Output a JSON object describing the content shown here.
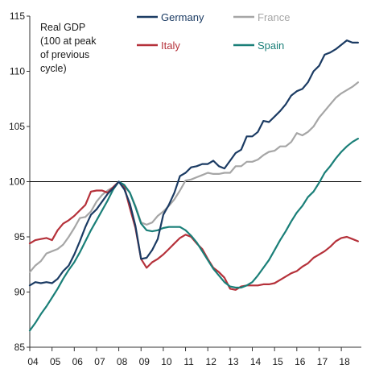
{
  "chart_data": {
    "type": "line",
    "title": "",
    "annotation": [
      "Real GDP",
      "(100 at peak",
      "of previous",
      "cycle)"
    ],
    "xlabel": "",
    "ylabel": "",
    "xlim": [
      2004.0,
      2018.9
    ],
    "ylim": [
      85,
      115
    ],
    "yticks": [
      85,
      90,
      95,
      100,
      105,
      110,
      115
    ],
    "xtick_labels": [
      "04",
      "05",
      "06",
      "07",
      "08",
      "09",
      "10",
      "11",
      "12",
      "13",
      "14",
      "15",
      "16",
      "17",
      "18"
    ],
    "reference_line": 100,
    "grid": false,
    "legend_position": "top",
    "series": [
      {
        "name": "Germany",
        "color": "#1b3b63",
        "x": [
          2004.0,
          2004.25,
          2004.5,
          2004.75,
          2005.0,
          2005.25,
          2005.5,
          2005.75,
          2006.0,
          2006.25,
          2006.5,
          2006.75,
          2007.0,
          2007.25,
          2007.5,
          2007.75,
          2008.0,
          2008.25,
          2008.5,
          2008.75,
          2009.0,
          2009.25,
          2009.5,
          2009.75,
          2010.0,
          2010.25,
          2010.5,
          2010.75,
          2011.0,
          2011.25,
          2011.5,
          2011.75,
          2012.0,
          2012.25,
          2012.5,
          2012.75,
          2013.0,
          2013.25,
          2013.5,
          2013.75,
          2014.0,
          2014.25,
          2014.5,
          2014.75,
          2015.0,
          2015.25,
          2015.5,
          2015.75,
          2016.0,
          2016.25,
          2016.5,
          2016.75,
          2017.0,
          2017.25,
          2017.5,
          2017.75,
          2018.0,
          2018.25,
          2018.5,
          2018.75
        ],
        "values": [
          90.6,
          90.9,
          90.8,
          90.9,
          90.8,
          91.2,
          91.9,
          92.4,
          93.4,
          94.6,
          95.9,
          97.0,
          97.5,
          98.2,
          98.9,
          99.4,
          100.0,
          99.3,
          98.0,
          96.0,
          93.0,
          93.1,
          93.8,
          94.8,
          97.0,
          97.9,
          99.0,
          100.5,
          100.8,
          101.3,
          101.4,
          101.6,
          101.6,
          101.9,
          101.4,
          101.2,
          101.9,
          102.6,
          102.9,
          104.1,
          104.1,
          104.5,
          105.5,
          105.4,
          105.9,
          106.4,
          107.0,
          107.8,
          108.2,
          108.4,
          109.0,
          110.0,
          110.5,
          111.5,
          111.7,
          112.0,
          112.4,
          112.8,
          112.6,
          112.6
        ],
        "description_only_if_unlabeled": ""
      },
      {
        "name": "France",
        "color": "#a6a6a6",
        "x": [
          2004.0,
          2004.25,
          2004.5,
          2004.75,
          2005.0,
          2005.25,
          2005.5,
          2005.75,
          2006.0,
          2006.25,
          2006.5,
          2006.75,
          2007.0,
          2007.25,
          2007.5,
          2007.75,
          2008.0,
          2008.25,
          2008.5,
          2008.75,
          2009.0,
          2009.25,
          2009.5,
          2009.75,
          2010.0,
          2010.25,
          2010.5,
          2010.75,
          2011.0,
          2011.25,
          2011.5,
          2011.75,
          2012.0,
          2012.25,
          2012.5,
          2012.75,
          2013.0,
          2013.25,
          2013.5,
          2013.75,
          2014.0,
          2014.25,
          2014.5,
          2014.75,
          2015.0,
          2015.25,
          2015.5,
          2015.75,
          2016.0,
          2016.25,
          2016.5,
          2016.75,
          2017.0,
          2017.25,
          2017.5,
          2017.75,
          2018.0,
          2018.25,
          2018.5,
          2018.75
        ],
        "values": [
          91.8,
          92.4,
          92.8,
          93.5,
          93.7,
          93.9,
          94.3,
          95.0,
          95.8,
          96.7,
          96.8,
          97.3,
          98.2,
          98.8,
          99.2,
          99.5,
          100.0,
          99.6,
          99.0,
          97.8,
          96.3,
          96.1,
          96.3,
          96.9,
          97.3,
          97.8,
          98.4,
          99.2,
          100.1,
          100.2,
          100.4,
          100.6,
          100.8,
          100.7,
          100.7,
          100.8,
          100.8,
          101.4,
          101.4,
          101.8,
          101.8,
          102.0,
          102.4,
          102.7,
          102.8,
          103.2,
          103.2,
          103.6,
          104.4,
          104.2,
          104.5,
          105.0,
          105.8,
          106.4,
          107.0,
          107.6,
          108.0,
          108.3,
          108.6,
          109.0
        ],
        "description_only_if_unlabeled": ""
      },
      {
        "name": "Italy",
        "color": "#b5313a",
        "x": [
          2004.0,
          2004.25,
          2004.5,
          2004.75,
          2005.0,
          2005.25,
          2005.5,
          2005.75,
          2006.0,
          2006.25,
          2006.5,
          2006.75,
          2007.0,
          2007.25,
          2007.5,
          2007.75,
          2008.0,
          2008.25,
          2008.5,
          2008.75,
          2009.0,
          2009.25,
          2009.5,
          2009.75,
          2010.0,
          2010.25,
          2010.5,
          2010.75,
          2011.0,
          2011.25,
          2011.5,
          2011.75,
          2012.0,
          2012.25,
          2012.5,
          2012.75,
          2013.0,
          2013.25,
          2013.5,
          2013.75,
          2014.0,
          2014.25,
          2014.5,
          2014.75,
          2015.0,
          2015.25,
          2015.5,
          2015.75,
          2016.0,
          2016.25,
          2016.5,
          2016.75,
          2017.0,
          2017.25,
          2017.5,
          2017.75,
          2018.0,
          2018.25,
          2018.5,
          2018.75
        ],
        "values": [
          94.4,
          94.7,
          94.8,
          94.9,
          94.7,
          95.6,
          96.2,
          96.5,
          96.9,
          97.4,
          97.9,
          99.1,
          99.2,
          99.2,
          99.0,
          99.5,
          100.0,
          99.5,
          97.6,
          95.8,
          93.0,
          92.2,
          92.7,
          93.0,
          93.4,
          93.9,
          94.4,
          94.9,
          95.2,
          95.0,
          94.4,
          93.9,
          93.0,
          92.2,
          91.8,
          91.3,
          90.3,
          90.2,
          90.5,
          90.6,
          90.6,
          90.6,
          90.7,
          90.7,
          90.8,
          91.1,
          91.4,
          91.7,
          91.9,
          92.3,
          92.6,
          93.1,
          93.4,
          93.7,
          94.1,
          94.6,
          94.9,
          95.0,
          94.8,
          94.6
        ],
        "description_only_if_unlabeled": ""
      },
      {
        "name": "Spain",
        "color": "#1a7f78",
        "x": [
          2004.0,
          2004.25,
          2004.5,
          2004.75,
          2005.0,
          2005.25,
          2005.5,
          2005.75,
          2006.0,
          2006.25,
          2006.5,
          2006.75,
          2007.0,
          2007.25,
          2007.5,
          2007.75,
          2008.0,
          2008.25,
          2008.5,
          2008.75,
          2009.0,
          2009.25,
          2009.5,
          2009.75,
          2010.0,
          2010.25,
          2010.5,
          2010.75,
          2011.0,
          2011.25,
          2011.5,
          2011.75,
          2012.0,
          2012.25,
          2012.5,
          2012.75,
          2013.0,
          2013.25,
          2013.5,
          2013.75,
          2014.0,
          2014.25,
          2014.5,
          2014.75,
          2015.0,
          2015.25,
          2015.5,
          2015.75,
          2016.0,
          2016.25,
          2016.5,
          2016.75,
          2017.0,
          2017.25,
          2017.5,
          2017.75,
          2018.0,
          2018.25,
          2018.5,
          2018.75
        ],
        "values": [
          86.5,
          87.2,
          88.0,
          88.7,
          89.5,
          90.3,
          91.2,
          92.0,
          92.7,
          93.6,
          94.6,
          95.6,
          96.5,
          97.4,
          98.3,
          99.3,
          100.0,
          99.7,
          99.0,
          97.7,
          96.2,
          95.6,
          95.5,
          95.6,
          95.8,
          95.9,
          95.9,
          95.9,
          95.6,
          95.1,
          94.5,
          93.7,
          92.9,
          92.1,
          91.5,
          90.9,
          90.5,
          90.4,
          90.4,
          90.6,
          90.9,
          91.5,
          92.2,
          92.9,
          93.8,
          94.7,
          95.5,
          96.4,
          97.2,
          97.8,
          98.6,
          99.1,
          99.9,
          100.8,
          101.4,
          102.1,
          102.7,
          103.2,
          103.6,
          103.9
        ],
        "description_only_if_unlabeled": ""
      }
    ]
  }
}
